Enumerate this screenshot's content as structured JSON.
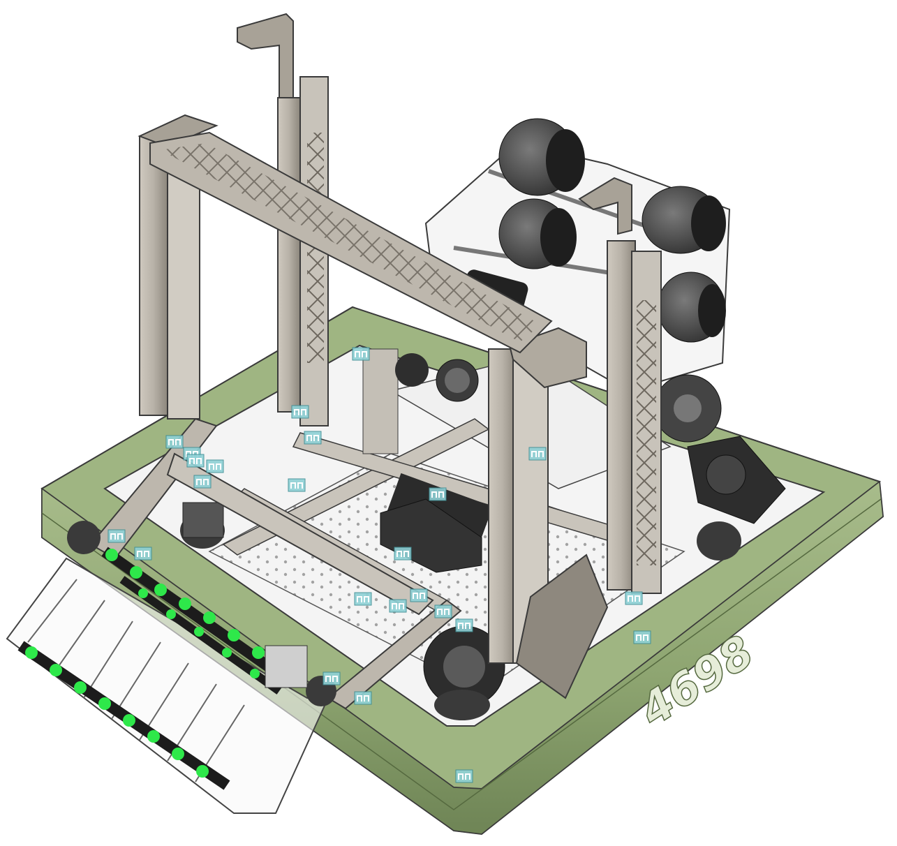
{
  "viewport": {
    "background": "#ffffff",
    "team_number": "4698"
  },
  "colors": {
    "bumper": "#8fa672",
    "bumper_dark": "#6f8556",
    "bumper_light": "#a9bd8c",
    "frame_metal": "#b8b2a8",
    "frame_metal_dark": "#8c867c",
    "frame_edge": "#3a3a3a",
    "plate": "#e9e9e9",
    "wheel": "#555555",
    "roller_green": "#2ee84a",
    "marker_fill": "#8fd1d6",
    "marker_dark": "#3d8c92",
    "team_number_fill": "#e6edd9"
  },
  "joint_markers": {
    "icon": "joint-marker-icon",
    "count": 24
  }
}
